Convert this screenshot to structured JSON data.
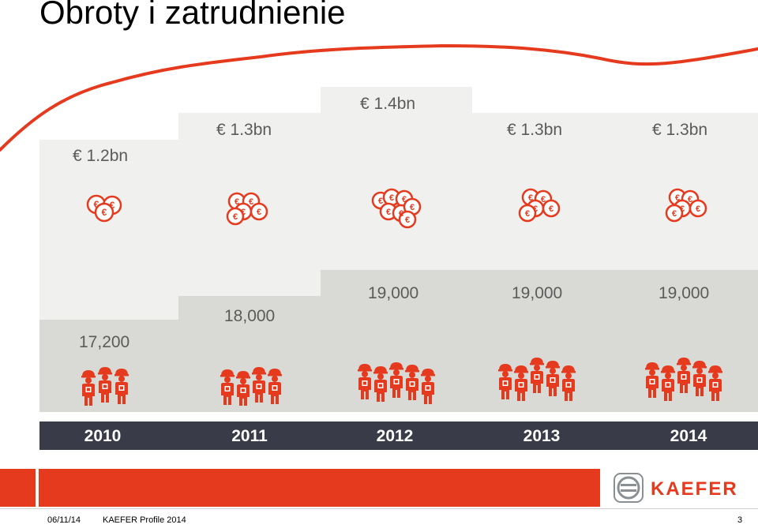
{
  "slide": {
    "title": "Obroty i zatrudnienie"
  },
  "years": [
    {
      "year": "2010",
      "revenue": "€ 1.2bn",
      "employees": "17,200"
    },
    {
      "year": "2011",
      "revenue": "€ 1.3bn",
      "employees": "18,000"
    },
    {
      "year": "2012",
      "revenue": "€ 1.4bn",
      "employees": "19,000"
    },
    {
      "year": "2013",
      "revenue": "€ 1.3bn",
      "employees": "19,000"
    },
    {
      "year": "2014",
      "revenue": "€ 1.3bn",
      "employees": "19,000"
    }
  ],
  "colors": {
    "accent": "#e53a1e",
    "years_bar": "#393c48",
    "panel_light": "#f0f0ee",
    "panel_dark": "#d9d9d5",
    "label_text": "#5b5b5b"
  },
  "icons": {
    "revenue": "euro-coins-icon",
    "employees": "workers-icon"
  },
  "logo": {
    "text": "KAEFER"
  },
  "footer": {
    "date": "06/11/14",
    "title": "KAEFER Profile 2014",
    "page": "3"
  }
}
